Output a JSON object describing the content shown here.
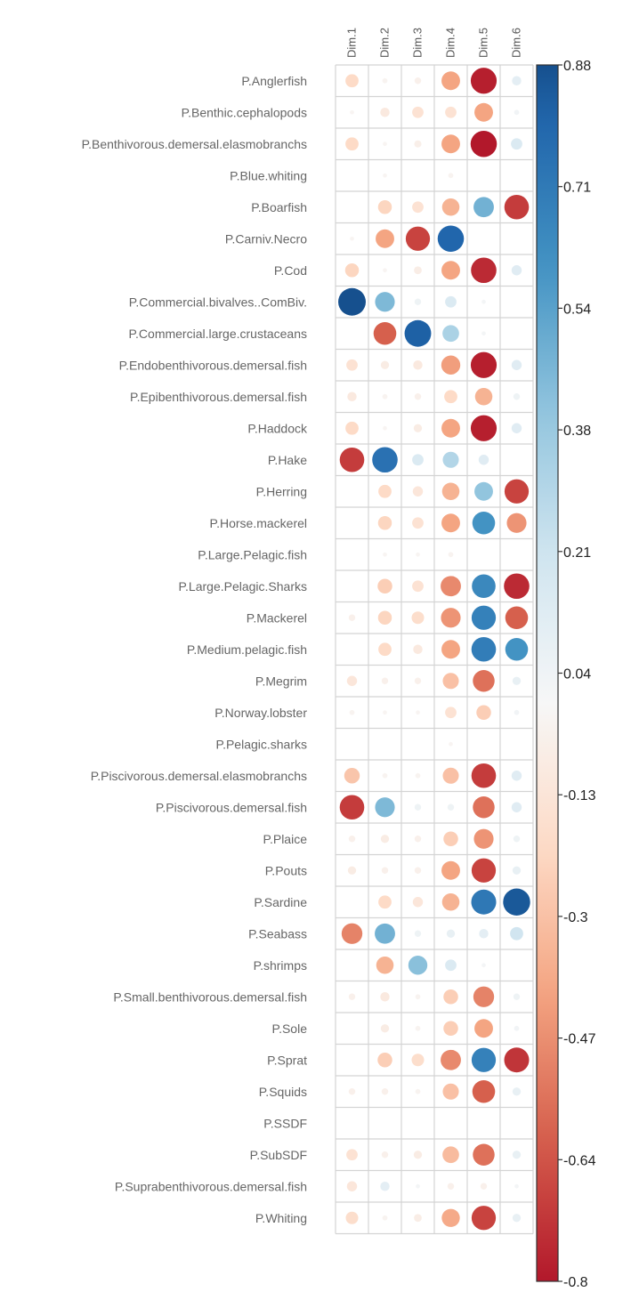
{
  "chart_data": {
    "type": "heatmap",
    "title": "",
    "columns": [
      "Dim.1",
      "Dim.2",
      "Dim.3",
      "Dim.4",
      "Dim.5",
      "Dim.6"
    ],
    "rows": [
      "P.Anglerfish",
      "P.Benthic.cephalopods",
      "P.Benthivorous.demersal.elasmobranchs",
      "P.Blue.whiting",
      "P.Boarfish",
      "P.Carniv.Necro",
      "P.Cod",
      "P.Commercial.bivalves..ComBiv.",
      "P.Commercial.large.crustaceans",
      "P.Endobenthivorous.demersal.fish",
      "P.Epibenthivorous.demersal.fish",
      "P.Haddock",
      "P.Hake",
      "P.Herring",
      "P.Horse.mackerel",
      "P.Large.Pelagic.fish",
      "P.Large.Pelagic.Sharks",
      "P.Mackerel",
      "P.Medium.pelagic.fish",
      "P.Megrim",
      "P.Norway.lobster",
      "P.Pelagic.sharks",
      "P.Piscivorous.demersal.elasmobranchs",
      "P.Piscivorous.demersal.fish",
      "P.Plaice",
      "P.Pouts",
      "P.Sardine",
      "P.Seabass",
      "P.shrimps",
      "P.Small.benthivorous.demersal.fish",
      "P.Sole",
      "P.Sprat",
      "P.Squids",
      "P.SSDF",
      "P.SubSDF",
      "P.Suprabenthivorous.demersal.fish",
      "P.Whiting"
    ],
    "values": [
      [
        -0.2,
        -0.03,
        -0.05,
        -0.4,
        -0.78,
        0.1
      ],
      [
        -0.02,
        -0.1,
        -0.15,
        -0.15,
        -0.4,
        0.03
      ],
      [
        -0.2,
        -0.02,
        -0.06,
        -0.4,
        -0.8,
        0.15
      ],
      [
        0.0,
        -0.02,
        0.0,
        -0.03,
        0.0,
        0.0
      ],
      [
        0.0,
        -0.22,
        -0.15,
        -0.35,
        0.48,
        -0.7
      ],
      [
        -0.02,
        -0.4,
        -0.68,
        0.8,
        0.0,
        0.0
      ],
      [
        -0.22,
        -0.02,
        -0.07,
        -0.4,
        -0.75,
        0.12
      ],
      [
        0.88,
        0.45,
        0.05,
        0.15,
        0.02,
        0.0
      ],
      [
        0.0,
        -0.6,
        0.82,
        0.32,
        0.02,
        0.0
      ],
      [
        -0.15,
        -0.08,
        -0.1,
        -0.42,
        -0.78,
        0.12
      ],
      [
        -0.1,
        -0.03,
        -0.05,
        -0.2,
        -0.35,
        0.05
      ],
      [
        -0.2,
        -0.02,
        -0.08,
        -0.4,
        -0.78,
        0.12
      ],
      [
        -0.7,
        0.75,
        0.15,
        0.3,
        0.12,
        0.0
      ],
      [
        0.0,
        -0.2,
        -0.12,
        -0.35,
        0.4,
        -0.68
      ],
      [
        0.0,
        -0.22,
        -0.15,
        -0.4,
        0.6,
        -0.45
      ],
      [
        0.0,
        -0.02,
        -0.02,
        -0.03,
        0.0,
        0.0
      ],
      [
        0.0,
        -0.25,
        -0.15,
        -0.48,
        0.65,
        -0.75
      ],
      [
        -0.05,
        -0.22,
        -0.18,
        -0.45,
        0.68,
        -0.6
      ],
      [
        0.0,
        -0.2,
        -0.1,
        -0.4,
        0.7,
        0.6
      ],
      [
        -0.12,
        -0.05,
        -0.05,
        -0.3,
        -0.55,
        0.08
      ],
      [
        -0.03,
        -0.02,
        -0.02,
        -0.15,
        -0.25,
        0.03
      ],
      [
        0.0,
        0.0,
        0.0,
        -0.02,
        0.0,
        0.0
      ],
      [
        -0.28,
        -0.03,
        -0.03,
        -0.3,
        -0.7,
        0.12
      ],
      [
        -0.7,
        0.45,
        0.05,
        0.05,
        -0.55,
        0.12
      ],
      [
        -0.05,
        -0.08,
        -0.05,
        -0.25,
        -0.45,
        0.05
      ],
      [
        -0.08,
        -0.05,
        -0.05,
        -0.4,
        -0.68,
        0.08
      ],
      [
        0.0,
        -0.2,
        -0.12,
        -0.35,
        0.72,
        0.85
      ],
      [
        -0.5,
        0.48,
        0.05,
        0.08,
        0.1,
        0.2
      ],
      [
        0.0,
        -0.35,
        0.42,
        0.15,
        0.02,
        0.0
      ],
      [
        -0.05,
        -0.1,
        -0.03,
        -0.25,
        -0.5,
        0.05
      ],
      [
        0.0,
        -0.08,
        -0.03,
        -0.25,
        -0.4,
        0.03
      ],
      [
        0.0,
        -0.25,
        -0.18,
        -0.48,
        0.68,
        -0.72
      ],
      [
        -0.05,
        -0.05,
        -0.03,
        -0.3,
        -0.6,
        0.08
      ],
      [
        0.0,
        0.0,
        0.0,
        0.0,
        0.0,
        0.0
      ],
      [
        -0.15,
        -0.05,
        -0.08,
        -0.32,
        -0.55,
        0.08
      ],
      [
        -0.12,
        0.1,
        0.02,
        -0.05,
        -0.05,
        0.02
      ],
      [
        -0.18,
        -0.03,
        -0.07,
        -0.38,
        -0.68,
        0.08
      ]
    ],
    "colorbar": {
      "ticks": [
        "0.88",
        "0.71",
        "0.54",
        "0.38",
        "0.21",
        "0.04",
        "-0.13",
        "-0.3",
        "-0.47",
        "-0.64",
        "-0.8"
      ],
      "min": -0.8,
      "max": 0.88
    },
    "colors": {
      "negative": "#67001f",
      "positive": "#053061",
      "neutral": "#f7f7f7",
      "grid": "#d4d4d4"
    }
  }
}
